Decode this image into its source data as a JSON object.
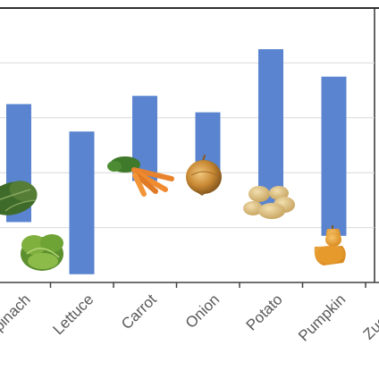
{
  "chart_data": {
    "type": "bar",
    "subtype": "floating",
    "categories": [
      "Spinach",
      "Lettuce",
      "Carrot",
      "Onion",
      "Potato",
      "Pumpkin",
      "Zucchini"
    ],
    "ranges": [
      [
        22,
        65
      ],
      [
        3,
        55
      ],
      [
        37,
        68
      ],
      [
        38,
        62
      ],
      [
        26,
        85
      ],
      [
        17,
        75
      ],
      null
    ],
    "bar_color": "#5a84cf",
    "grid": true,
    "legend": "none",
    "icons": [
      "spinach-icon",
      "lettuce-icon",
      "carrot-icon",
      "onion-icon",
      "potato-icon",
      "butternut-squash-icon"
    ]
  }
}
